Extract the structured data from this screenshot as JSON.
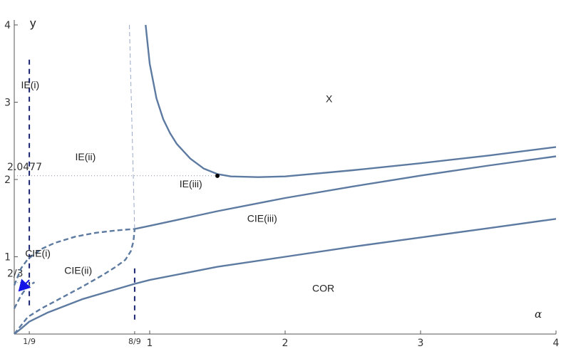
{
  "chart_data": {
    "type": "line",
    "xlabel": "α",
    "ylabel": "y",
    "xlim": [
      0,
      4
    ],
    "ylim": [
      0,
      4
    ],
    "grid": false,
    "x_ticks": [
      {
        "value": 1,
        "label": "1"
      },
      {
        "value": 2,
        "label": "2"
      },
      {
        "value": 3,
        "label": "3"
      },
      {
        "value": 4,
        "label": "4"
      }
    ],
    "x_ticks_special": [
      {
        "value": 0.1111,
        "label": "1/9"
      },
      {
        "value": 0.8889,
        "label": "8/9"
      }
    ],
    "y_ticks": [
      {
        "value": 1,
        "label": "1"
      },
      {
        "value": 2,
        "label": "2"
      },
      {
        "value": 3,
        "label": "3"
      },
      {
        "value": 4,
        "label": "4"
      }
    ],
    "y_ticks_special": [
      {
        "value": 0.6667,
        "label": "2/3"
      },
      {
        "value": 2.0477,
        "label": "2.0477"
      }
    ],
    "region_labels": [
      {
        "text": "X",
        "x": 2.3,
        "y": 3.0
      },
      {
        "text": "IE(i)",
        "x": 0.05,
        "y": 3.18
      },
      {
        "text": "IE(ii)",
        "x": 0.45,
        "y": 2.25
      },
      {
        "text": "IE(iii)",
        "x": 1.22,
        "y": 1.9
      },
      {
        "text": "CIE(iii)",
        "x": 1.72,
        "y": 1.45
      },
      {
        "text": "CIE(i)",
        "x": 0.08,
        "y": 1.0
      },
      {
        "text": "CIE(ii)",
        "x": 0.37,
        "y": 0.78
      },
      {
        "text": "COR",
        "x": 2.2,
        "y": 0.55
      }
    ],
    "series": [
      {
        "style": "solid",
        "points": [
          [
            0.97,
            4.0
          ],
          [
            1.0,
            3.5
          ],
          [
            1.05,
            3.05
          ],
          [
            1.1,
            2.78
          ],
          [
            1.15,
            2.6
          ],
          [
            1.2,
            2.46
          ],
          [
            1.3,
            2.27
          ],
          [
            1.4,
            2.14
          ],
          [
            1.5,
            2.07
          ],
          [
            1.6,
            2.04
          ],
          [
            1.8,
            2.03
          ],
          [
            2.0,
            2.04
          ],
          [
            2.5,
            2.12
          ],
          [
            3.0,
            2.21
          ],
          [
            3.5,
            2.31
          ],
          [
            4.0,
            2.42
          ]
        ]
      },
      {
        "style": "solid",
        "points": [
          [
            0.89,
            1.36
          ],
          [
            1.0,
            1.4
          ],
          [
            1.5,
            1.59
          ],
          [
            2.0,
            1.76
          ],
          [
            2.5,
            1.91
          ],
          [
            3.0,
            2.05
          ],
          [
            3.5,
            2.18
          ],
          [
            4.0,
            2.3
          ]
        ]
      },
      {
        "style": "solid",
        "points": [
          [
            0.0,
            0.0
          ],
          [
            0.05,
            0.07
          ],
          [
            0.111,
            0.16
          ],
          [
            0.25,
            0.28
          ],
          [
            0.5,
            0.45
          ],
          [
            0.889,
            0.65
          ],
          [
            1.0,
            0.7
          ],
          [
            1.5,
            0.87
          ],
          [
            2.0,
            1.0
          ],
          [
            2.5,
            1.13
          ],
          [
            3.0,
            1.25
          ],
          [
            3.5,
            1.37
          ],
          [
            4.0,
            1.49
          ]
        ]
      },
      {
        "style": "dashed",
        "points": [
          [
            0.0,
            0.63
          ],
          [
            0.05,
            0.85
          ],
          [
            0.1,
            0.97
          ],
          [
            0.2,
            1.1
          ],
          [
            0.3,
            1.18
          ],
          [
            0.45,
            1.26
          ],
          [
            0.6,
            1.31
          ],
          [
            0.75,
            1.34
          ],
          [
            0.889,
            1.36
          ]
        ]
      },
      {
        "style": "dashed",
        "points": [
          [
            0.0,
            0.0
          ],
          [
            0.1,
            0.22
          ],
          [
            0.2,
            0.33
          ],
          [
            0.35,
            0.47
          ],
          [
            0.5,
            0.61
          ],
          [
            0.65,
            0.76
          ],
          [
            0.75,
            0.87
          ],
          [
            0.82,
            0.96
          ],
          [
            0.86,
            1.07
          ],
          [
            0.88,
            1.2
          ],
          [
            0.889,
            1.36
          ]
        ]
      },
      {
        "style": "dashed",
        "points": [
          [
            0.0,
            0.33
          ],
          [
            0.05,
            0.5
          ],
          [
            0.1,
            0.62
          ],
          [
            0.15,
            0.67
          ]
        ]
      },
      {
        "style": "thin-dashed",
        "points": [
          [
            0.85,
            4.0
          ],
          [
            0.889,
            1.36
          ]
        ]
      }
    ],
    "reference_lines": [
      {
        "style": "dotted",
        "points": [
          [
            0.0,
            2.0477
          ],
          [
            1.5,
            2.0477
          ]
        ]
      },
      {
        "style": "dotted",
        "points": [
          [
            0.0,
            0.6667
          ],
          [
            0.111,
            0.6667
          ]
        ]
      },
      {
        "style": "dashed-vertical",
        "points": [
          [
            0.111,
            3.55
          ],
          [
            0.111,
            0.36
          ]
        ]
      },
      {
        "style": "dashed-vertical",
        "points": [
          [
            0.889,
            0.85
          ],
          [
            0.889,
            0.15
          ]
        ]
      }
    ],
    "marked_point": {
      "x": 1.5,
      "y": 2.0477
    },
    "arrow": {
      "from": [
        0.111,
        0.7
      ],
      "to": [
        0.03,
        0.55
      ],
      "color": "#1414e6"
    }
  }
}
